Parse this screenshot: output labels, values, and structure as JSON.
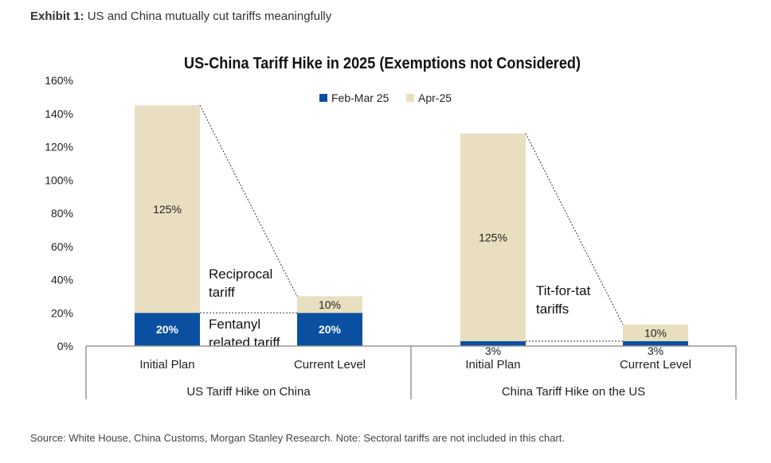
{
  "exhibit": {
    "label": "Exhibit 1:",
    "text": "US and China mutually cut tariffs meaningfully"
  },
  "source": "Source: White House, China Customs, Morgan Stanley Research. Note: Sectoral tariffs are not included in this chart.",
  "colors": {
    "feb_mar": "#0b4fa0",
    "apr": "#e9dfc0",
    "axis": "#999999",
    "text": "#222222"
  },
  "chart_data": {
    "type": "bar",
    "stacked": true,
    "title": "US-China Tariff Hike in 2025 (Exemptions not Considered)",
    "ylim": [
      0,
      160
    ],
    "yticks": [
      0,
      20,
      40,
      60,
      80,
      100,
      120,
      140,
      160
    ],
    "ytick_labels": [
      "0%",
      "20%",
      "40%",
      "60%",
      "80%",
      "100%",
      "120%",
      "140%",
      "160%"
    ],
    "legend": [
      "Feb-Mar 25",
      "Apr-25"
    ],
    "legend_position": "top-center",
    "groups": [
      {
        "label": "US Tariff Hike on China",
        "categories": [
          "Initial Plan",
          "Current Level"
        ]
      },
      {
        "label": "China Tariff Hike on the US",
        "categories": [
          "Initial Plan",
          "Current Level"
        ]
      }
    ],
    "categories": [
      "Initial Plan",
      "Current Level",
      "Initial Plan",
      "Current Level"
    ],
    "series": [
      {
        "name": "Feb-Mar 25",
        "values": [
          20,
          20,
          3,
          3
        ],
        "labels": [
          "20%",
          "20%",
          "3%",
          "3%"
        ]
      },
      {
        "name": "Apr-25",
        "values": [
          125,
          10,
          125,
          10
        ],
        "labels": [
          "125%",
          "10%",
          "125%",
          "10%"
        ]
      }
    ],
    "annotations": [
      {
        "text": [
          "Reciprocal",
          "tariff"
        ]
      },
      {
        "text": [
          "Fentanyl",
          "related tariff"
        ]
      },
      {
        "text": [
          "Tit-for-tat",
          "tariffs"
        ]
      }
    ]
  }
}
